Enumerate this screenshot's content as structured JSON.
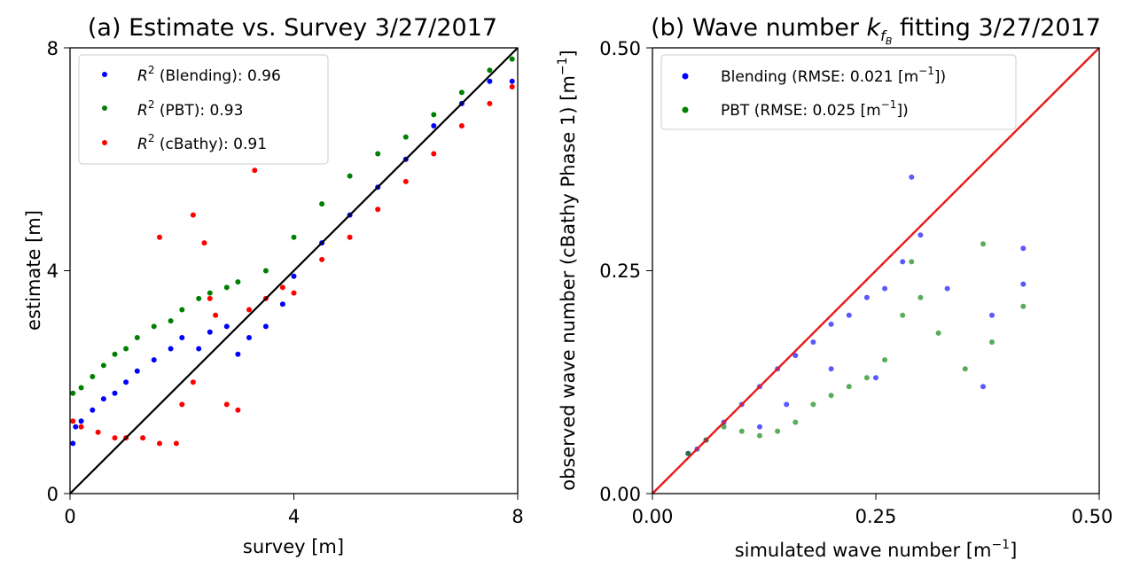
{
  "chart_data": [
    {
      "type": "scatter",
      "title": "(a) Estimate vs. Survey 3/27/2017",
      "xlabel": "survey [m]",
      "ylabel": "estimate [m]",
      "xlim": [
        0,
        8
      ],
      "ylim": [
        0,
        8
      ],
      "xticks": [
        "0",
        "4",
        "8"
      ],
      "yticks": [
        "0",
        "4",
        "8"
      ],
      "reference_line": {
        "name": "1:1 line",
        "color": "#000000",
        "from": [
          0,
          0
        ],
        "to": [
          8,
          8
        ]
      },
      "legend": {
        "placement": "top-left"
      },
      "series": [
        {
          "name": "Blending",
          "legend_math": "R",
          "legend_sup": "2",
          "legend_rest": " (Blending):  0.96",
          "r2": 0.96,
          "color": "#0000ff",
          "points": [
            [
              0.05,
              0.9
            ],
            [
              0.1,
              1.2
            ],
            [
              0.2,
              1.3
            ],
            [
              0.4,
              1.5
            ],
            [
              0.6,
              1.7
            ],
            [
              0.8,
              1.8
            ],
            [
              1.0,
              2.0
            ],
            [
              1.2,
              2.2
            ],
            [
              1.5,
              2.4
            ],
            [
              1.8,
              2.6
            ],
            [
              2.0,
              2.8
            ],
            [
              2.3,
              2.6
            ],
            [
              2.5,
              2.9
            ],
            [
              2.8,
              3.0
            ],
            [
              3.0,
              2.5
            ],
            [
              3.2,
              2.8
            ],
            [
              3.5,
              3.0
            ],
            [
              3.8,
              3.4
            ],
            [
              4.0,
              3.9
            ],
            [
              4.5,
              4.5
            ],
            [
              5.0,
              5.0
            ],
            [
              5.5,
              5.5
            ],
            [
              6.0,
              6.0
            ],
            [
              6.5,
              6.6
            ],
            [
              7.0,
              7.0
            ],
            [
              7.5,
              7.4
            ],
            [
              7.9,
              7.4
            ]
          ]
        },
        {
          "name": "PBT",
          "legend_math": "R",
          "legend_sup": "2",
          "legend_rest": " (PBT):  0.93",
          "r2": 0.93,
          "color": "#008000",
          "points": [
            [
              0.05,
              1.8
            ],
            [
              0.2,
              1.9
            ],
            [
              0.4,
              2.1
            ],
            [
              0.6,
              2.3
            ],
            [
              0.8,
              2.5
            ],
            [
              1.0,
              2.6
            ],
            [
              1.2,
              2.8
            ],
            [
              1.5,
              3.0
            ],
            [
              1.8,
              3.1
            ],
            [
              2.0,
              3.3
            ],
            [
              2.3,
              3.5
            ],
            [
              2.5,
              3.6
            ],
            [
              2.8,
              3.7
            ],
            [
              3.0,
              3.8
            ],
            [
              3.5,
              4.0
            ],
            [
              4.0,
              4.6
            ],
            [
              4.5,
              5.2
            ],
            [
              5.0,
              5.7
            ],
            [
              5.5,
              6.1
            ],
            [
              6.0,
              6.4
            ],
            [
              6.5,
              6.8
            ],
            [
              7.0,
              7.2
            ],
            [
              7.5,
              7.6
            ],
            [
              7.9,
              7.8
            ]
          ]
        },
        {
          "name": "cBathy",
          "legend_math": "R",
          "legend_sup": "2",
          "legend_rest": " (cBathy):  0.91",
          "r2": 0.91,
          "color": "#ff0000",
          "points": [
            [
              0.05,
              1.3
            ],
            [
              0.2,
              1.2
            ],
            [
              0.5,
              1.1
            ],
            [
              0.8,
              1.0
            ],
            [
              1.0,
              1.0
            ],
            [
              1.3,
              1.0
            ],
            [
              1.6,
              0.9
            ],
            [
              1.9,
              0.9
            ],
            [
              2.0,
              1.6
            ],
            [
              2.2,
              2.0
            ],
            [
              2.5,
              3.5
            ],
            [
              2.8,
              1.6
            ],
            [
              3.0,
              1.5
            ],
            [
              3.2,
              3.3
            ],
            [
              3.3,
              5.8
            ],
            [
              2.2,
              5.0
            ],
            [
              1.6,
              4.6
            ],
            [
              2.4,
              4.5
            ],
            [
              2.6,
              3.2
            ],
            [
              3.5,
              3.5
            ],
            [
              3.8,
              3.7
            ],
            [
              4.0,
              3.6
            ],
            [
              4.5,
              4.2
            ],
            [
              5.0,
              4.6
            ],
            [
              5.5,
              5.1
            ],
            [
              6.0,
              5.6
            ],
            [
              6.5,
              6.1
            ],
            [
              7.0,
              6.6
            ],
            [
              7.5,
              7.0
            ],
            [
              7.9,
              7.3
            ]
          ]
        }
      ]
    },
    {
      "type": "scatter",
      "title_prefix": "(b) Wave number ",
      "title_k": "k",
      "title_sub": "f",
      "title_subsub": "B",
      "title_suffix": " fitting 3/27/2017",
      "xlabel": "simulated wave number [m",
      "xlabel_sup": "−1",
      "xlabel_end": "]",
      "ylabel": "observed wave number (cBathy Phase 1) [m",
      "ylabel_sup": "−1",
      "ylabel_end": "]",
      "xlim": [
        0,
        0.5
      ],
      "ylim": [
        0,
        0.5
      ],
      "xticks": [
        "0.00",
        "0.25",
        "0.50"
      ],
      "yticks": [
        "0.00",
        "0.25",
        "0.50"
      ],
      "reference_line": {
        "name": "1:1 line",
        "color": "#e8191a",
        "from": [
          0,
          0
        ],
        "to": [
          0.5,
          0.5
        ]
      },
      "legend": {
        "placement": "top-left"
      },
      "series": [
        {
          "name": "Blending",
          "legend_text": "Blending (RMSE:   0.021 [m",
          "legend_sup": "−1",
          "legend_end": "])",
          "rmse": 0.021,
          "color": "#0000ff",
          "points": [
            [
              0.04,
              0.045
            ],
            [
              0.05,
              0.05
            ],
            [
              0.06,
              0.06
            ],
            [
              0.08,
              0.08
            ],
            [
              0.1,
              0.1
            ],
            [
              0.12,
              0.12
            ],
            [
              0.14,
              0.14
            ],
            [
              0.16,
              0.155
            ],
            [
              0.18,
              0.17
            ],
            [
              0.2,
              0.19
            ],
            [
              0.22,
              0.2
            ],
            [
              0.24,
              0.22
            ],
            [
              0.26,
              0.23
            ],
            [
              0.28,
              0.26
            ],
            [
              0.3,
              0.29
            ],
            [
              0.33,
              0.23
            ],
            [
              0.38,
              0.2
            ],
            [
              0.415,
              0.275
            ],
            [
              0.415,
              0.235
            ],
            [
              0.12,
              0.075
            ],
            [
              0.15,
              0.1
            ],
            [
              0.2,
              0.14
            ],
            [
              0.25,
              0.13
            ],
            [
              0.37,
              0.12
            ],
            [
              0.29,
              0.355
            ]
          ]
        },
        {
          "name": "PBT",
          "legend_text": "PBT (RMSE:   0.025 [m",
          "legend_sup": "−1",
          "legend_end": "])",
          "rmse": 0.025,
          "color": "#008000",
          "points": [
            [
              0.04,
              0.045
            ],
            [
              0.06,
              0.06
            ],
            [
              0.08,
              0.075
            ],
            [
              0.1,
              0.07
            ],
            [
              0.12,
              0.065
            ],
            [
              0.14,
              0.07
            ],
            [
              0.16,
              0.08
            ],
            [
              0.18,
              0.1
            ],
            [
              0.2,
              0.11
            ],
            [
              0.22,
              0.12
            ],
            [
              0.24,
              0.13
            ],
            [
              0.26,
              0.15
            ],
            [
              0.28,
              0.2
            ],
            [
              0.3,
              0.22
            ],
            [
              0.32,
              0.18
            ],
            [
              0.35,
              0.14
            ],
            [
              0.38,
              0.17
            ],
            [
              0.415,
              0.21
            ],
            [
              0.37,
              0.28
            ],
            [
              0.29,
              0.26
            ]
          ]
        }
      ]
    }
  ]
}
